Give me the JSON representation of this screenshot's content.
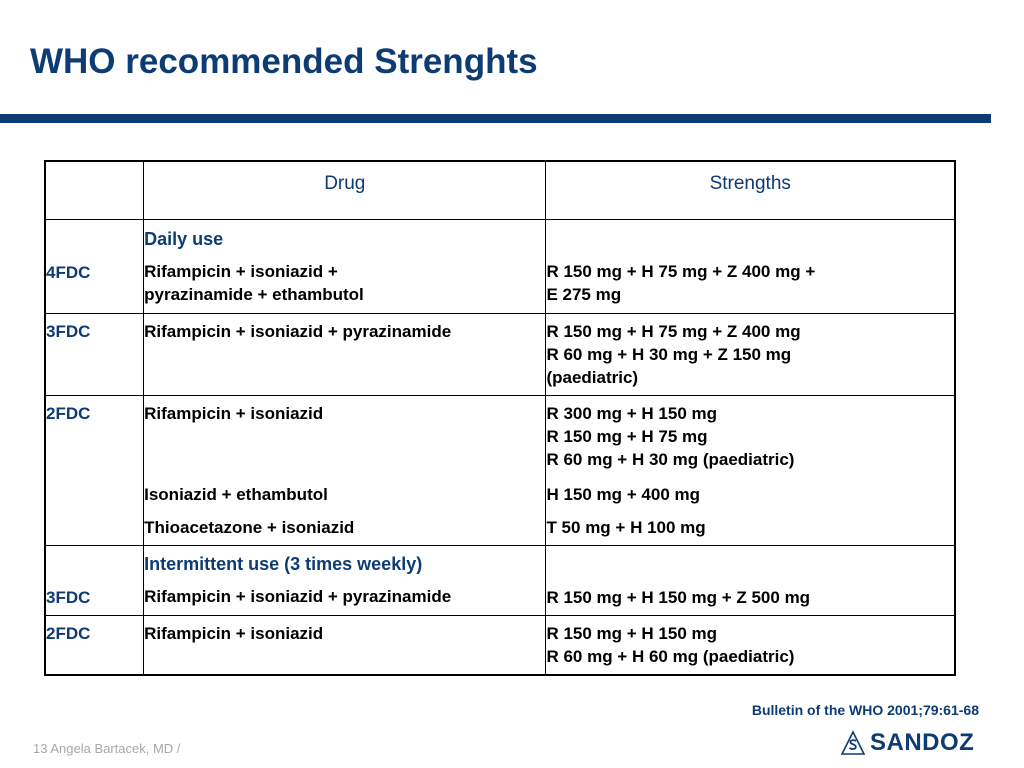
{
  "slide": {
    "title": "WHO recommended Strenghts",
    "source": "Bulletin of the WHO 2001;79:61-68",
    "footer": "13 Angela Bartacek, MD /",
    "logo_text": "SANDOZ"
  },
  "colors": {
    "brand": "#0d3b73",
    "footer_gray": "#a8a8a8"
  },
  "table": {
    "headers": [
      "",
      "Drug",
      "Strengths"
    ],
    "daily_section": "Daily use",
    "intermittent_section": "Intermittent use (3 times weekly)",
    "rows": [
      {
        "label": "4FDC",
        "drug": [
          "Rifampicin + isoniazid +",
          "pyrazinamide + ethambutol"
        ],
        "strength": [
          "R 150 mg + H 75 mg  + Z 400 mg +",
          "E 275 mg"
        ]
      },
      {
        "label": "3FDC",
        "drug": [
          "Rifampicin + isoniazid + pyrazinamide"
        ],
        "strength": [
          "R 150 mg + H 75 mg + Z 400 mg",
          "R 60 mg + H 30 mg + Z 150 mg",
          "(paediatric)"
        ]
      },
      {
        "label": "2FDC",
        "groups": [
          {
            "drug": "Rifampicin + isoniazid",
            "strength": [
              "R 300 mg + H 150 mg",
              "R 150 mg + H 75 mg",
              "R 60 mg + H 30 mg (paediatric)"
            ]
          },
          {
            "drug": "Isoniazid + ethambutol",
            "strength": [
              "H 150 mg + 400 mg"
            ]
          },
          {
            "drug": "Thioacetazone + isoniazid",
            "strength": [
              "T 50 mg + H 100 mg"
            ]
          }
        ]
      },
      {
        "label": "3FDC",
        "drug": [
          "Rifampicin + isoniazid + pyrazinamide"
        ],
        "strength": [
          "R 150 mg + H 150 mg + Z 500 mg"
        ]
      },
      {
        "label": "2FDC",
        "drug": [
          "Rifampicin + isoniazid"
        ],
        "strength": [
          "R 150 mg + H 150 mg",
          "R 60 mg + H 60 mg (paediatric)"
        ]
      }
    ]
  }
}
